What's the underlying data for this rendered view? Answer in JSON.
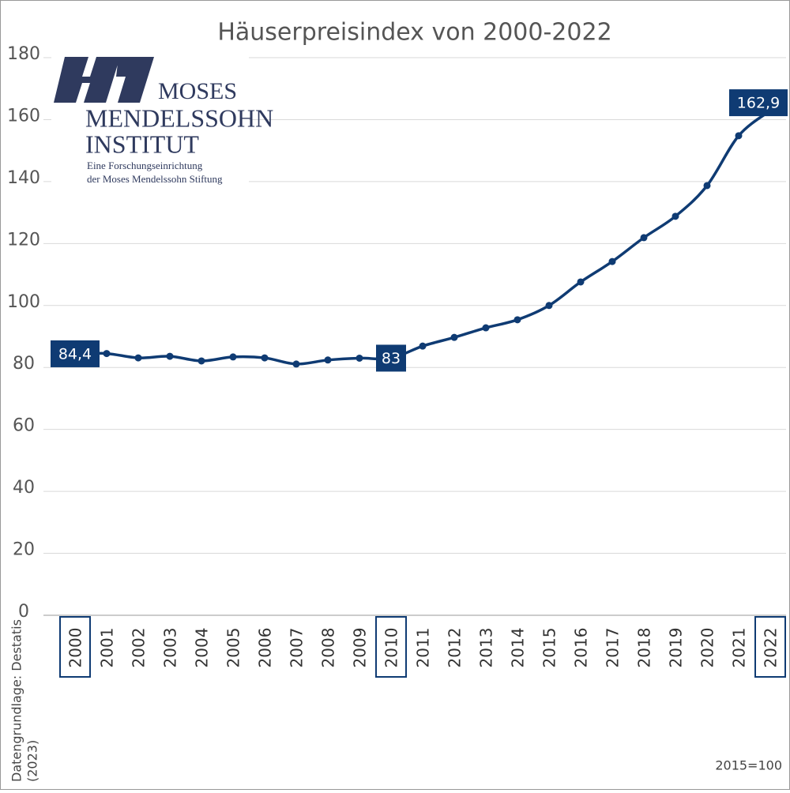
{
  "chart_data": {
    "type": "line",
    "title": "Häuserpreisindex von 2000-2022",
    "categories": [
      "2000",
      "2001",
      "2002",
      "2003",
      "2004",
      "2005",
      "2006",
      "2007",
      "2008",
      "2009",
      "2010",
      "2011",
      "2012",
      "2013",
      "2014",
      "2015",
      "2016",
      "2017",
      "2018",
      "2019",
      "2020",
      "2021",
      "2022"
    ],
    "values": [
      84.4,
      84.5,
      83.1,
      83.6,
      82.1,
      83.4,
      83.1,
      81.1,
      82.4,
      83.0,
      83,
      86.9,
      89.7,
      92.8,
      95.4,
      100,
      107.6,
      114.2,
      121.9,
      128.8,
      138.7,
      154.8,
      162.9
    ],
    "value_labels": [
      "84,4",
      null,
      null,
      null,
      null,
      null,
      null,
      null,
      null,
      null,
      "83",
      null,
      null,
      null,
      null,
      null,
      null,
      null,
      null,
      null,
      null,
      null,
      "162,9"
    ],
    "color": "#0f3b73",
    "ylim": [
      0,
      180
    ],
    "yticks": [
      0,
      20,
      40,
      60,
      80,
      100,
      120,
      140,
      160,
      180
    ],
    "grid": true,
    "source": [
      "Datengrundlage: Destatis",
      "(2023)"
    ],
    "note": "2015=100"
  },
  "logo": {
    "name": [
      "MOSES",
      "MENDELSSOHN",
      "INSTITUT"
    ],
    "tagline": [
      "Eine Forschungseinrichtung",
      "der Moses Mendelssohn Stiftung"
    ]
  }
}
